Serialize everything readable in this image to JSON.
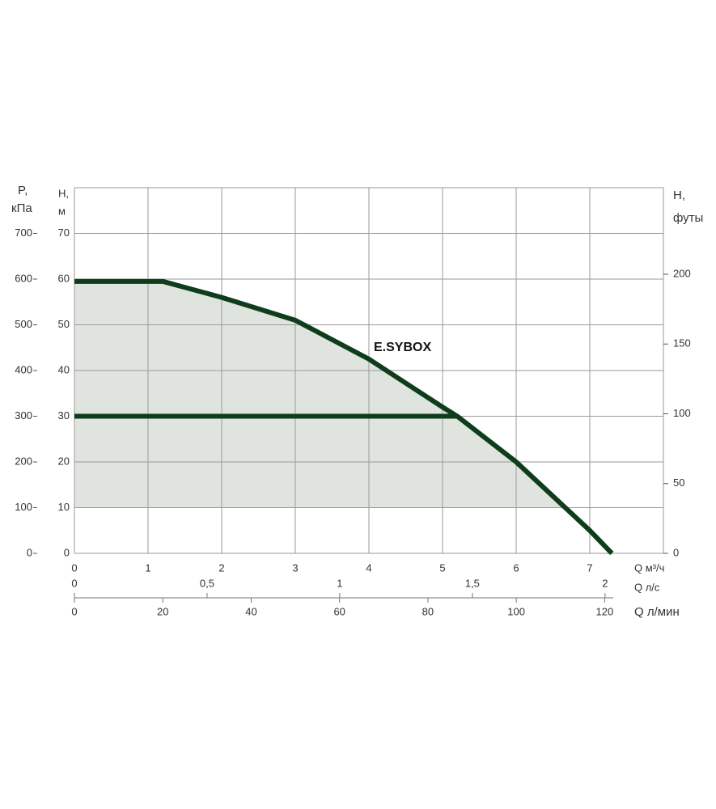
{
  "chart_data": {
    "type": "line",
    "xlim": [
      0,
      8
    ],
    "xticks": [
      0,
      1,
      2,
      3,
      4,
      5,
      6,
      7
    ],
    "x_label": "Q м³/ч",
    "ls_lim": [
      0,
      2.22
    ],
    "ls_ticks": [
      0,
      {
        "value": 0.5,
        "label": "0,5"
      },
      1,
      {
        "value": 1.5,
        "label": "1,5"
      },
      2
    ],
    "ls_label": "Q л/с",
    "lmin_lim": [
      0,
      133.3
    ],
    "lmin_ticks": [
      0,
      20,
      40,
      60,
      80,
      100,
      120
    ],
    "lmin_label": "Q л/мин",
    "ylim": [
      0,
      80
    ],
    "yticks": [
      0,
      10,
      20,
      30,
      40,
      50,
      60,
      70
    ],
    "y_label": [
      "H,",
      "м"
    ],
    "p_lim": [
      0,
      800
    ],
    "p_ticks": [
      0,
      100,
      200,
      300,
      400,
      500,
      600,
      700
    ],
    "p_label": [
      "P,",
      "кПа"
    ],
    "y2lim": [
      0,
      262
    ],
    "y2ticks": [
      0,
      50,
      100,
      150,
      200
    ],
    "y2_label": [
      "H,",
      "футы"
    ],
    "grid": true,
    "area_color": "#dfe5de",
    "area_bottom": 10,
    "series": [
      {
        "name": "E.SYBOX",
        "color": "#0f3d1c",
        "x": [
          0,
          1.2,
          2,
          3,
          4,
          5,
          5.2,
          6,
          7,
          7.3
        ],
        "values": [
          59.5,
          59.5,
          56,
          51,
          42.5,
          32,
          30,
          20,
          5,
          0
        ]
      },
      {
        "color": "#0f3d1c",
        "x": [
          0,
          5.2
        ],
        "values": [
          30,
          30
        ]
      }
    ]
  }
}
